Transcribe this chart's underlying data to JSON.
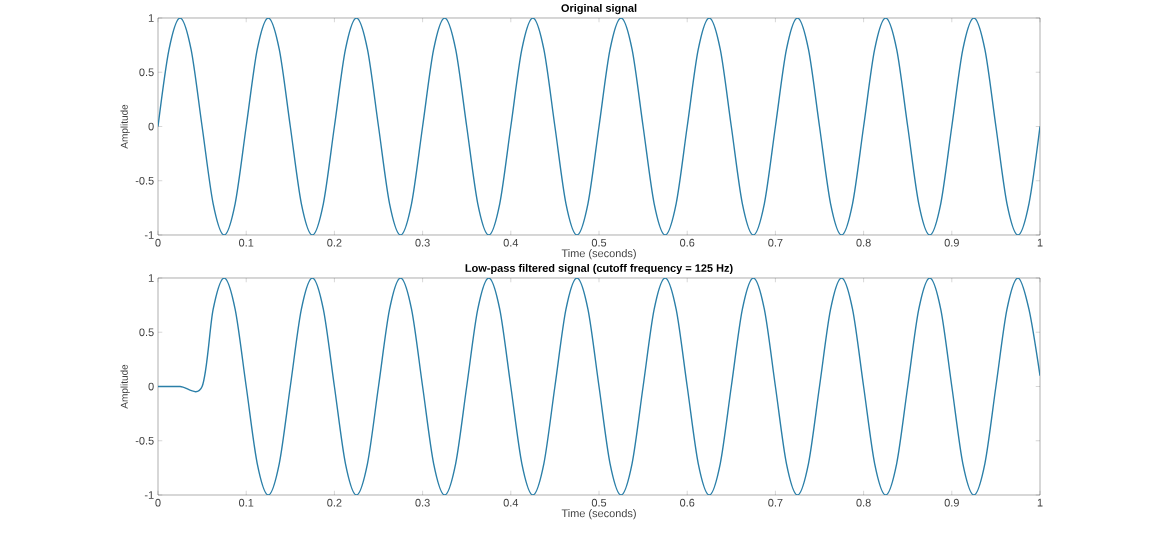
{
  "chart_data": [
    {
      "type": "line",
      "title": "Original signal",
      "xlabel": "Time (seconds)",
      "ylabel": "Amplitude",
      "xlim": [
        0,
        1
      ],
      "ylim": [
        -1,
        1
      ],
      "xticks": [
        0,
        0.1,
        0.2,
        0.3,
        0.4,
        0.5,
        0.6,
        0.7,
        0.8,
        0.9,
        1
      ],
      "yticks": [
        -1,
        -0.5,
        0,
        0.5,
        1
      ],
      "series": [
        {
          "color": "#2b7fa8",
          "x": [
            0,
            0.0125,
            0.025,
            0.0375,
            0.05,
            0.0625,
            0.075,
            0.0875,
            0.1,
            0.1125,
            0.125,
            0.1375,
            0.15,
            0.1625,
            0.175,
            0.1875,
            0.2,
            0.2125,
            0.225,
            0.2375,
            0.25,
            0.2625,
            0.275,
            0.2875,
            0.3,
            0.3125,
            0.325,
            0.3375,
            0.35,
            0.3625,
            0.375,
            0.3875,
            0.4,
            0.4125,
            0.425,
            0.4375,
            0.45,
            0.4625,
            0.475,
            0.4875,
            0.5,
            0.5125,
            0.525,
            0.5375,
            0.55,
            0.5625,
            0.575,
            0.5875,
            0.6,
            0.6125,
            0.625,
            0.6375,
            0.65,
            0.6625,
            0.675,
            0.6875,
            0.7,
            0.7125,
            0.725,
            0.7375,
            0.75,
            0.7625,
            0.775,
            0.7875,
            0.8,
            0.8125,
            0.825,
            0.8375,
            0.85,
            0.8625,
            0.875,
            0.8875,
            0.9,
            0.9125,
            0.925,
            0.9375,
            0.95,
            0.9625,
            0.975,
            0.9875,
            1
          ],
          "values": [
            0,
            0.71,
            1,
            0.71,
            0,
            -0.71,
            -1,
            -0.71,
            0,
            0.71,
            1,
            0.71,
            0,
            -0.71,
            -1,
            -0.71,
            0,
            0.71,
            1,
            0.71,
            0,
            -0.71,
            -1,
            -0.71,
            0,
            0.71,
            1,
            0.71,
            0,
            -0.71,
            -1,
            -0.71,
            0,
            0.71,
            1,
            0.71,
            0,
            -0.71,
            -1,
            -0.71,
            0,
            0.71,
            1,
            0.71,
            0,
            -0.71,
            -1,
            -0.71,
            0,
            0.71,
            1,
            0.71,
            0,
            -0.71,
            -1,
            -0.71,
            0,
            0.71,
            1,
            0.71,
            0,
            -0.71,
            -1,
            -0.71,
            0,
            0.71,
            1,
            0.71,
            0,
            -0.71,
            -1,
            -0.71,
            0,
            0.71,
            1,
            0.71,
            0,
            -0.71,
            -1,
            -0.71,
            0
          ]
        }
      ]
    },
    {
      "type": "line",
      "title": "Low-pass filtered signal (cutoff frequency = 125 Hz)",
      "xlabel": "Time (seconds)",
      "ylabel": "Amplitude",
      "xlim": [
        0,
        1
      ],
      "ylim": [
        -1,
        1
      ],
      "xticks": [
        0,
        0.1,
        0.2,
        0.3,
        0.4,
        0.5,
        0.6,
        0.7,
        0.8,
        0.9,
        1
      ],
      "yticks": [
        -1,
        -0.5,
        0,
        0.5,
        1
      ],
      "series": [
        {
          "color": "#2b7fa8",
          "x": [
            0,
            0.025,
            0.05,
            0.0625,
            0.075,
            0.0875,
            0.1,
            0.1125,
            0.125,
            0.1375,
            0.15,
            0.1625,
            0.175,
            0.1875,
            0.2,
            0.2125,
            0.225,
            0.2375,
            0.25,
            0.2625,
            0.275,
            0.2875,
            0.3,
            0.3125,
            0.325,
            0.3375,
            0.35,
            0.3625,
            0.375,
            0.3875,
            0.4,
            0.4125,
            0.425,
            0.4375,
            0.45,
            0.4625,
            0.475,
            0.4875,
            0.5,
            0.5125,
            0.525,
            0.5375,
            0.55,
            0.5625,
            0.575,
            0.5875,
            0.6,
            0.6125,
            0.625,
            0.6375,
            0.65,
            0.6625,
            0.675,
            0.6875,
            0.7,
            0.7125,
            0.725,
            0.7375,
            0.75,
            0.7625,
            0.775,
            0.7875,
            0.8,
            0.8125,
            0.825,
            0.8375,
            0.85,
            0.8625,
            0.875,
            0.8875,
            0.9,
            0.9125,
            0.925,
            0.9375,
            0.95,
            0.9625,
            0.975,
            0.9875,
            1
          ],
          "values": [
            0,
            0,
            0,
            0.71,
            1,
            0.71,
            0,
            -0.71,
            -1,
            -0.71,
            0,
            0.71,
            1,
            0.71,
            0,
            -0.71,
            -1,
            -0.71,
            0,
            0.71,
            1,
            0.71,
            0,
            -0.71,
            -1,
            -0.71,
            0,
            0.71,
            1,
            0.71,
            0,
            -0.71,
            -1,
            -0.71,
            0,
            0.71,
            1,
            0.71,
            0,
            -0.71,
            -1,
            -0.71,
            0,
            0.71,
            1,
            0.71,
            0,
            -0.71,
            -1,
            -0.71,
            0,
            0.71,
            1,
            0.71,
            0,
            -0.71,
            -1,
            -0.71,
            0,
            0.71,
            1,
            0.71,
            0,
            -0.71,
            -1,
            -0.71,
            0,
            0.71,
            1,
            0.71,
            0,
            -0.71,
            -1,
            -0.71,
            0,
            0.71,
            1,
            0.71,
            0.1
          ]
        }
      ]
    }
  ]
}
